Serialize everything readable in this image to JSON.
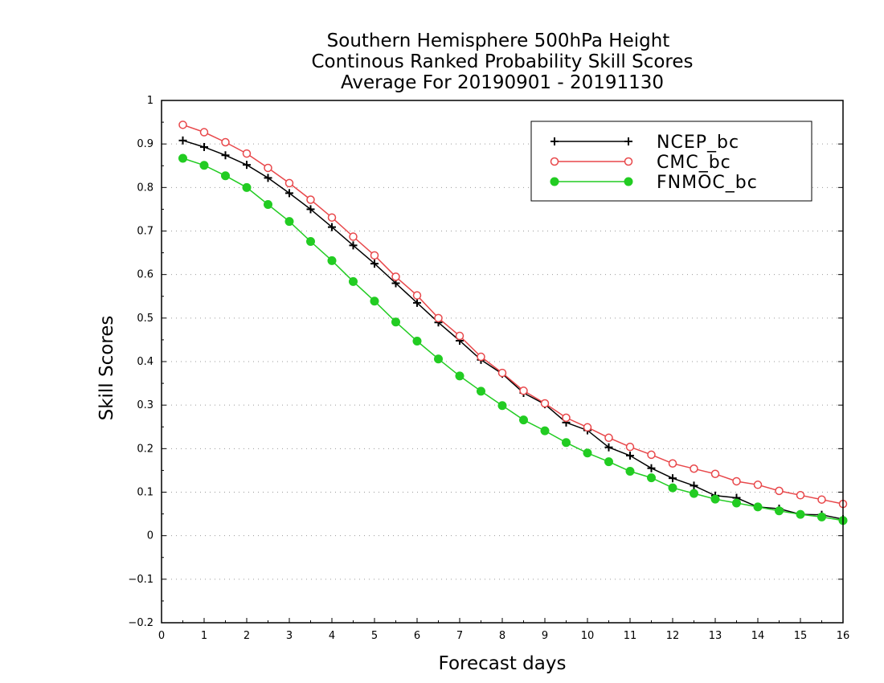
{
  "chart_data": {
    "type": "line",
    "title_lines": [
      "Southern Hemisphere 500hPa Height",
      "Continous Ranked Probability Skill Scores",
      "Average For 20190901 - 20191130"
    ],
    "xlabel": "Forecast days",
    "ylabel": "Skill Scores",
    "xlim": [
      0,
      16
    ],
    "ylim": [
      -0.2,
      1
    ],
    "x_ticks": [
      0,
      1,
      2,
      3,
      4,
      5,
      6,
      7,
      8,
      9,
      10,
      11,
      12,
      13,
      14,
      15,
      16
    ],
    "y_ticks": [
      -0.2,
      -0.1,
      0,
      0.1,
      0.2,
      0.3,
      0.4,
      0.5,
      0.6,
      0.7,
      0.8,
      0.9,
      1
    ],
    "y_tick_labels": [
      "−0.2",
      "−0.1",
      "0",
      "0.1",
      "0.2",
      "0.3",
      "0.4",
      "0.5",
      "0.6",
      "0.7",
      "0.8",
      "0.9",
      "1"
    ],
    "grid": "horizontal dotted",
    "legend_position": "top-right",
    "x": [
      0.5,
      1,
      1.5,
      2,
      2.5,
      3,
      3.5,
      4,
      4.5,
      5,
      5.5,
      6,
      6.5,
      7,
      7.5,
      8,
      8.5,
      9,
      9.5,
      10,
      10.5,
      11,
      11.5,
      12,
      12.5,
      13,
      13.5,
      14,
      14.5,
      15,
      15.5,
      16
    ],
    "series": [
      {
        "name": "NCEP_bc",
        "color": "#000000",
        "marker": "plus",
        "values": [
          0.908,
          0.893,
          0.874,
          0.852,
          0.822,
          0.787,
          0.75,
          0.709,
          0.667,
          0.625,
          0.58,
          0.535,
          0.49,
          0.448,
          0.404,
          0.372,
          0.328,
          0.302,
          0.26,
          0.242,
          0.203,
          0.184,
          0.155,
          0.132,
          0.115,
          0.092,
          0.087,
          0.066,
          0.062,
          0.049,
          0.048,
          0.038
        ]
      },
      {
        "name": "CMC_bc",
        "color": "#e8474a",
        "marker": "open-circle",
        "values": [
          0.944,
          0.927,
          0.904,
          0.878,
          0.845,
          0.81,
          0.772,
          0.731,
          0.687,
          0.644,
          0.595,
          0.552,
          0.5,
          0.459,
          0.411,
          0.374,
          0.333,
          0.304,
          0.271,
          0.249,
          0.225,
          0.204,
          0.186,
          0.166,
          0.154,
          0.142,
          0.125,
          0.117,
          0.103,
          0.093,
          0.083,
          0.073
        ]
      },
      {
        "name": "FNMOC_bc",
        "color": "#22cc22",
        "marker": "filled-circle",
        "values": [
          0.867,
          0.851,
          0.827,
          0.8,
          0.761,
          0.722,
          0.676,
          0.632,
          0.584,
          0.539,
          0.491,
          0.447,
          0.406,
          0.367,
          0.332,
          0.299,
          0.266,
          0.241,
          0.214,
          0.19,
          0.17,
          0.148,
          0.133,
          0.11,
          0.097,
          0.084,
          0.075,
          0.066,
          0.057,
          0.049,
          0.043,
          0.035
        ]
      }
    ]
  }
}
